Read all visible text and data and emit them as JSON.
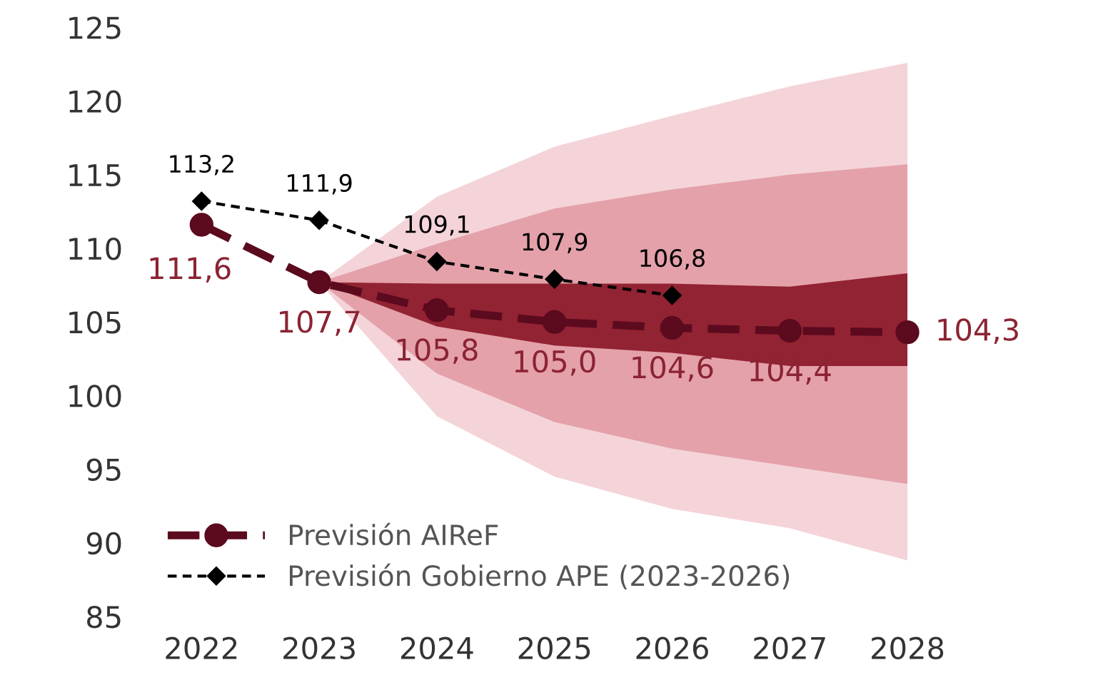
{
  "chart_data": {
    "type": "line",
    "categories": [
      "2022",
      "2023",
      "2024",
      "2025",
      "2026",
      "2027",
      "2028"
    ],
    "ylim": [
      85,
      125
    ],
    "yticks": [
      85,
      90,
      95,
      100,
      105,
      110,
      115,
      120,
      125
    ],
    "grid": false,
    "legend": "bottom left",
    "series": [
      {
        "type": "area",
        "color": "#f4d4d9",
        "values": [
          null,
          null,
          null,
          null,
          null,
          null,
          null
        ],
        "lower": [
          null,
          107.7,
          98.6,
          94.5,
          92.3,
          91.0,
          88.8
        ],
        "upper": [
          null,
          107.7,
          113.5,
          116.9,
          119.0,
          121.0,
          122.6
        ]
      },
      {
        "type": "area",
        "color": "#e4a1aa",
        "values": [
          null,
          null,
          null,
          null,
          null,
          null,
          null
        ],
        "lower": [
          null,
          107.7,
          101.5,
          98.2,
          96.4,
          95.2,
          94.0
        ],
        "upper": [
          null,
          107.7,
          110.3,
          112.7,
          114.0,
          115.0,
          115.7
        ]
      },
      {
        "type": "area",
        "color": "#922333",
        "values": [
          null,
          null,
          null,
          null,
          null,
          null,
          null
        ],
        "lower": [
          null,
          107.7,
          104.7,
          103.4,
          102.9,
          102.0,
          102.0
        ],
        "upper": [
          null,
          107.7,
          107.6,
          107.6,
          107.6,
          107.4,
          108.3
        ]
      },
      {
        "name": "Previsión AIReF",
        "color": "#5c0a1e",
        "marker": "circle",
        "line_style": "dashed",
        "values": [
          111.6,
          107.7,
          105.8,
          105.0,
          104.6,
          104.4,
          104.3
        ],
        "value_labels": [
          "111,6",
          "107,7",
          "105,8",
          "105,0",
          "104,6",
          "104,4",
          "104,3"
        ]
      },
      {
        "name": "Previsión Gobierno APE (2023-2026)",
        "color": "#000000",
        "marker": "diamond",
        "line_style": "dotted",
        "values": [
          113.2,
          111.9,
          109.1,
          107.9,
          106.8,
          null,
          null
        ],
        "value_labels": [
          "113,2",
          "111,9",
          "109,1",
          "107,9",
          "106,8",
          null,
          null
        ]
      }
    ]
  }
}
